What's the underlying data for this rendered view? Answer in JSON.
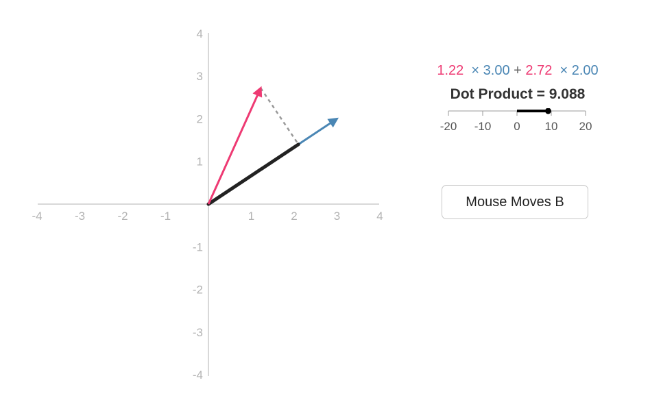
{
  "plane": {
    "x_ticks": [
      "-4",
      "-3",
      "-2",
      "-1",
      "1",
      "2",
      "3",
      "4"
    ],
    "y_ticks": [
      "4",
      "3",
      "2",
      "1",
      "-1",
      "-2",
      "-3",
      "-4"
    ],
    "vector_a": {
      "x": 1.22,
      "y": 2.72,
      "color": "#ee3a73"
    },
    "vector_b": {
      "x": 3.0,
      "y": 2.0,
      "color": "#4a86b4"
    },
    "projection_color": "#222222",
    "dashed_color": "#999999"
  },
  "formula": {
    "a_x": "1.22",
    "times_b_x": "× 3.00",
    "plus": "+",
    "a_y": "2.72",
    "times_b_y": "× 2.00"
  },
  "dot_product": {
    "text": "Dot Product = 9.088",
    "value": 9.088
  },
  "scale": {
    "ticks": [
      "-20",
      "-10",
      "0",
      "10",
      "20"
    ],
    "min": -20,
    "max": 20,
    "value": 9.088
  },
  "mode_button": {
    "label": "Mouse Moves B"
  }
}
